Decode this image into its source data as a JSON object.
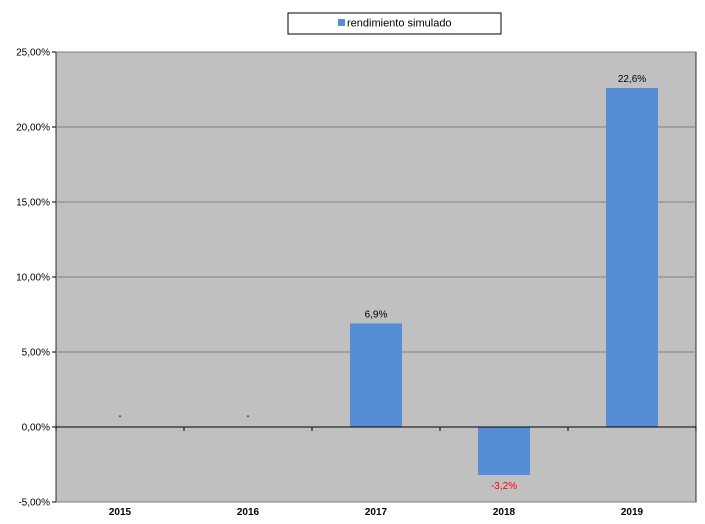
{
  "chart_data": {
    "type": "bar",
    "categories": [
      "2015",
      "2016",
      "2017",
      "2018",
      "2019"
    ],
    "series": [
      {
        "name": "rendimiento simulado",
        "values": [
          null,
          null,
          6.9,
          -3.2,
          22.6
        ],
        "data_labels": [
          "-",
          "-",
          "6,9%",
          "-3,2%",
          "22,6%"
        ],
        "color": "#558ed5"
      }
    ],
    "ylim": [
      -5,
      25
    ],
    "y_ticks": [
      25,
      20,
      15,
      10,
      5,
      0,
      -5
    ],
    "y_tick_labels": [
      "25,00%",
      "20,00%",
      "15,00%",
      "10,00%",
      "5,00%",
      "0,00%",
      "-5,00%"
    ],
    "grid": true,
    "legend": "top-center",
    "plot_background": "#c0c0c0",
    "gridline_color": "#7f7f7f",
    "negative_label_color": "#ff0000",
    "title": "",
    "xlabel": "",
    "ylabel": ""
  }
}
